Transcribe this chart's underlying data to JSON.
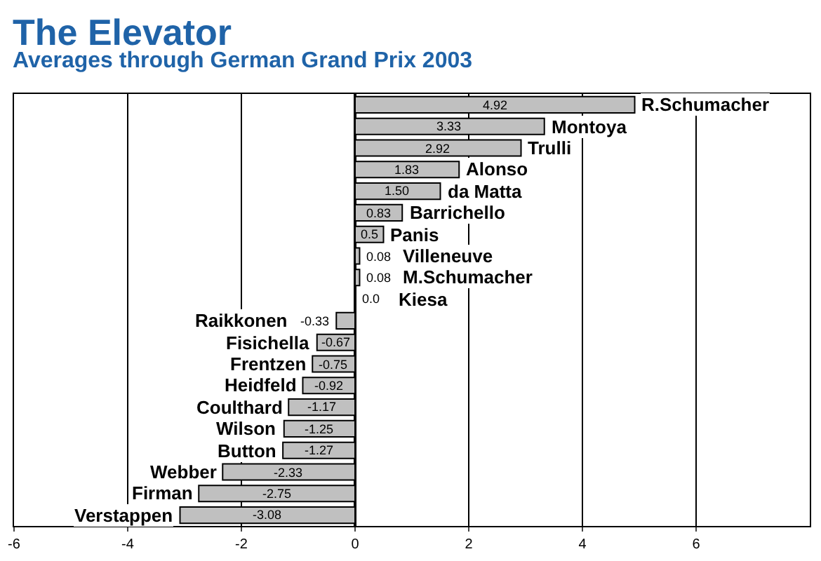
{
  "chart_data": {
    "type": "bar",
    "orientation": "horizontal",
    "title": "The Elevator",
    "subtitle": "Averages through German Grand Prix 2003",
    "categories": [
      "R.Schumacher",
      "Montoya",
      "Trulli",
      "Alonso",
      "da Matta",
      "Barrichello",
      "Panis",
      "Villeneuve",
      "M.Schumacher",
      "Kiesa",
      "Raikkonen",
      "Fisichella",
      "Frentzen",
      "Heidfeld",
      "Coulthard",
      "Wilson",
      "Button",
      "Webber",
      "Firman",
      "Verstappen"
    ],
    "values": [
      4.92,
      3.33,
      2.92,
      1.83,
      1.5,
      0.83,
      0.5,
      0.08,
      0.08,
      0.0,
      -0.33,
      -0.67,
      -0.75,
      -0.92,
      -1.17,
      -1.25,
      -1.27,
      -2.33,
      -2.75,
      -3.08
    ],
    "value_labels": [
      "4.92",
      "3.33",
      "2.92",
      "1.83",
      "1.50",
      "0.83",
      "0.5",
      "0.08",
      "0.08",
      "0.0",
      "-0.33",
      "-0.67",
      "-0.75",
      "-0.92",
      "-1.17",
      "-1.25",
      "-1.27",
      "-2.33",
      "-2.75",
      "-3.08"
    ],
    "color": "#c0c0c0",
    "xlim": [
      -6,
      8
    ],
    "xticks": [
      -6,
      -4,
      -2,
      0,
      2,
      4,
      6
    ],
    "grid": "x",
    "legend": false,
    "tick_labels": "x"
  }
}
